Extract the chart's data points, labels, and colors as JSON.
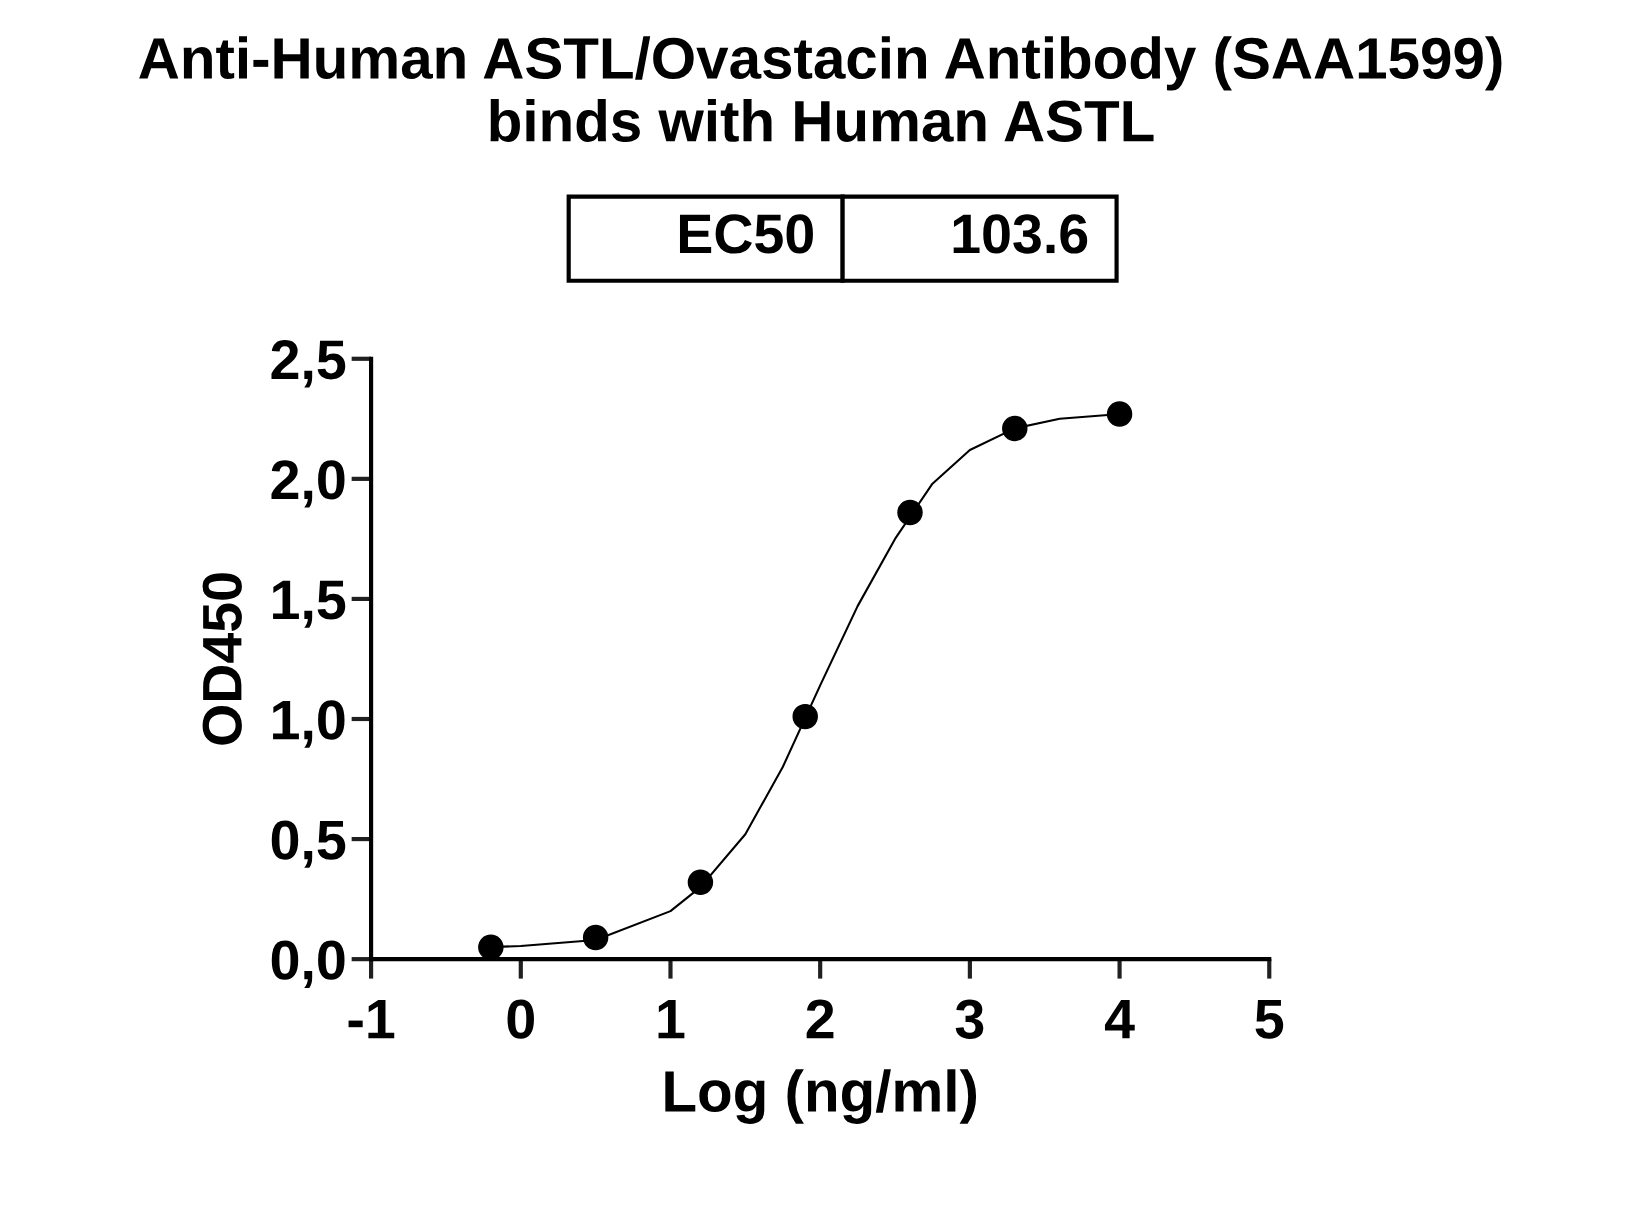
{
  "chart_data": {
    "type": "scatter",
    "title": "Anti-Human ASTL/Ovastacin Antibody (SAA1599)\nbinds with Human ASTL",
    "xlabel": "Log (ng/ml)",
    "ylabel": "OD450",
    "annotations": [
      "EC50",
      "103.6"
    ],
    "series": [
      {
        "color": "#000000",
        "marker": "circle",
        "x": [
          -0.2,
          0.5,
          1.2,
          1.9,
          2.6,
          3.3,
          4.0
        ],
        "values": [
          0.05,
          0.09,
          0.32,
          1.01,
          1.86,
          2.21,
          2.27
        ]
      },
      {
        "type": "line",
        "color": "#000000",
        "marker": "none",
        "line_style": "solid",
        "x": [
          -0.2,
          0.0,
          0.5,
          1.0,
          1.2,
          1.5,
          1.75,
          2.0,
          2.25,
          2.5,
          2.75,
          3.0,
          3.3,
          3.6,
          4.0
        ],
        "values": [
          0.05,
          0.055,
          0.08,
          0.2,
          0.3,
          0.52,
          0.8,
          1.14,
          1.47,
          1.75,
          1.98,
          2.12,
          2.21,
          2.25,
          2.27
        ]
      }
    ],
    "xlim": [
      -1,
      5
    ],
    "xticks": [
      -1,
      0,
      1,
      2,
      3,
      4,
      5
    ],
    "ylim": [
      0,
      2.5
    ],
    "yticks": [
      {
        "value": 0,
        "label": "0,0"
      },
      {
        "value": 0.5,
        "label": "0,5"
      },
      {
        "value": 1.0,
        "label": "1,0"
      },
      {
        "value": 1.5,
        "label": "1,5"
      },
      {
        "value": 2.0,
        "label": "2,0"
      },
      {
        "value": 2.5,
        "label": "2,5"
      }
    ],
    "grid": false,
    "legend": false
  }
}
